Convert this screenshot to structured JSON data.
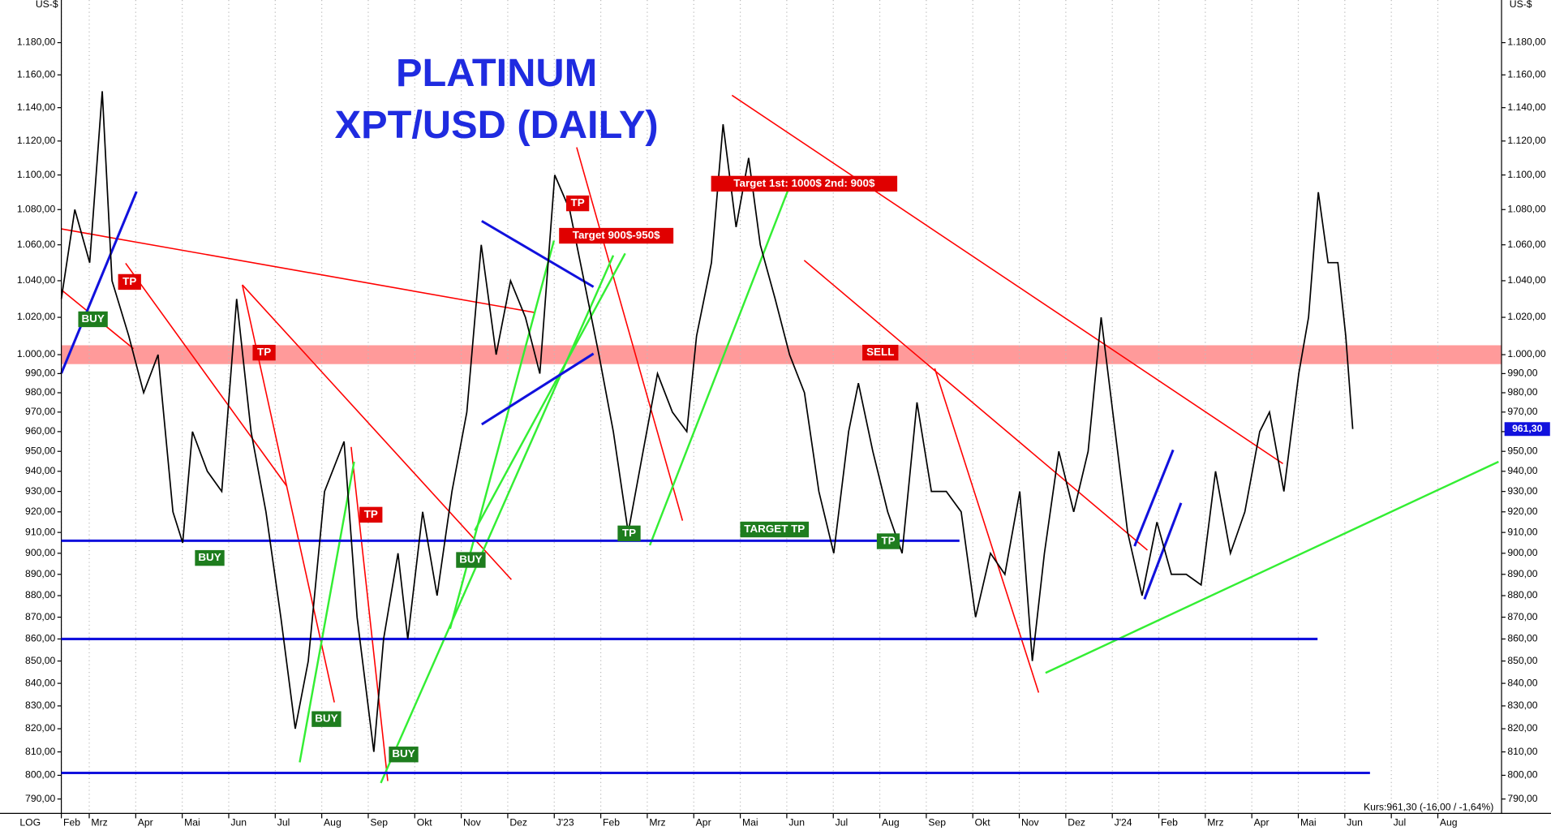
{
  "chart_data": {
    "type": "line",
    "title": [
      "PLATINUM",
      "XPT/USD (DAILY)"
    ],
    "y_label": "US-$",
    "scale_label": "LOG",
    "log_scale": true,
    "grid": true,
    "color": "#000000",
    "last_price_label": "961,30",
    "quote": "Kurs:961,30 (-16,00 / -1,64%)",
    "x": [
      1.4,
      1.69,
      2.01,
      2.28,
      2.49,
      2.85,
      3.17,
      3.48,
      3.8,
      4.01,
      4.22,
      4.54,
      4.85,
      5.17,
      5.48,
      5.8,
      6.12,
      6.43,
      6.71,
      7.06,
      7.48,
      7.76,
      8.12,
      8.33,
      8.64,
      8.85,
      9.17,
      9.48,
      9.8,
      10.12,
      10.43,
      10.75,
      11.06,
      11.38,
      11.69,
      12.01,
      12.33,
      12.64,
      12.96,
      13.27,
      13.59,
      13.91,
      14.22,
      14.54,
      14.85,
      15.06,
      15.38,
      15.63,
      15.91,
      16.18,
      16.43,
      16.75,
      17.06,
      17.38,
      17.69,
      18.01,
      18.33,
      18.54,
      18.85,
      19.17,
      19.48,
      19.8,
      20.11,
      20.43,
      20.75,
      21.06,
      21.38,
      21.69,
      22.01,
      22.28,
      22.54,
      22.85,
      23.17,
      23.48,
      23.76,
      24.01,
      24.33,
      24.64,
      24.96,
      25.27,
      25.59,
      25.91,
      26.22,
      26.54,
      26.85,
      27.17,
      27.38,
      27.69,
      28.01,
      28.22,
      28.43,
      28.64,
      28.85,
      29.02,
      29.17
    ],
    "values": [
      1030,
      1080,
      1050,
      1150,
      1040,
      1010,
      980,
      1000,
      920,
      905,
      960,
      940,
      930,
      1030,
      960,
      920,
      870,
      820,
      850,
      930,
      955,
      870,
      810,
      860,
      900,
      860,
      920,
      880,
      930,
      970,
      1060,
      1000,
      1040,
      1020,
      990,
      1100,
      1080,
      1040,
      1000,
      960,
      910,
      950,
      990,
      970,
      960,
      1010,
      1050,
      1130,
      1070,
      1110,
      1060,
      1030,
      1000,
      980,
      930,
      900,
      960,
      985,
      950,
      920,
      900,
      975,
      930,
      930,
      920,
      870,
      900,
      890,
      930,
      850,
      900,
      950,
      920,
      950,
      1020,
      970,
      910,
      880,
      915,
      890,
      890,
      885,
      940,
      900,
      920,
      960,
      970,
      930,
      990,
      1020,
      1090,
      1050,
      1050,
      1010,
      961.3
    ],
    "xlim": [
      1.4,
      32.37
    ],
    "xticks": [
      {
        "value": 1.4,
        "label": "Feb"
      },
      {
        "value": 2,
        "label": "Mrz"
      },
      {
        "value": 3,
        "label": "Apr"
      },
      {
        "value": 4,
        "label": "Mai"
      },
      {
        "value": 5,
        "label": "Jun"
      },
      {
        "value": 6,
        "label": "Jul"
      },
      {
        "value": 7,
        "label": "Aug"
      },
      {
        "value": 8,
        "label": "Sep"
      },
      {
        "value": 9,
        "label": "Okt"
      },
      {
        "value": 10,
        "label": "Nov"
      },
      {
        "value": 11,
        "label": "Dez"
      },
      {
        "value": 12,
        "label": "J'23"
      },
      {
        "value": 13,
        "label": "Feb"
      },
      {
        "value": 14,
        "label": "Mrz"
      },
      {
        "value": 15,
        "label": "Apr"
      },
      {
        "value": 16,
        "label": "Mai"
      },
      {
        "value": 17,
        "label": "Jun"
      },
      {
        "value": 18,
        "label": "Jul"
      },
      {
        "value": 19,
        "label": "Aug"
      },
      {
        "value": 20,
        "label": "Sep"
      },
      {
        "value": 21,
        "label": "Okt"
      },
      {
        "value": 22,
        "label": "Nov"
      },
      {
        "value": 23,
        "label": "Dez"
      },
      {
        "value": 24,
        "label": "J'24"
      },
      {
        "value": 25,
        "label": "Feb"
      },
      {
        "value": 26,
        "label": "Mrz"
      },
      {
        "value": 27,
        "label": "Apr"
      },
      {
        "value": 28,
        "label": "Mai"
      },
      {
        "value": 29,
        "label": "Jun"
      },
      {
        "value": 30,
        "label": "Jul"
      },
      {
        "value": 31,
        "label": "Aug"
      }
    ],
    "ylim": [
      784,
      1207
    ],
    "yticks": [
      {
        "value": 790,
        "label": "790,00"
      },
      {
        "value": 800,
        "label": "800,00"
      },
      {
        "value": 810,
        "label": "810,00"
      },
      {
        "value": 820,
        "label": "820,00"
      },
      {
        "value": 830,
        "label": "830,00"
      },
      {
        "value": 840,
        "label": "840,00"
      },
      {
        "value": 850,
        "label": "850,00"
      },
      {
        "value": 860,
        "label": "860,00"
      },
      {
        "value": 870,
        "label": "870,00"
      },
      {
        "value": 880,
        "label": "880,00"
      },
      {
        "value": 890,
        "label": "890,00"
      },
      {
        "value": 900,
        "label": "900,00"
      },
      {
        "value": 910,
        "label": "910,00"
      },
      {
        "value": 920,
        "label": "920,00"
      },
      {
        "value": 930,
        "label": "930,00"
      },
      {
        "value": 940,
        "label": "940,00"
      },
      {
        "value": 950,
        "label": "950,00"
      },
      {
        "value": 960,
        "label": "960,00"
      },
      {
        "value": 970,
        "label": "970,00"
      },
      {
        "value": 980,
        "label": "980,00"
      },
      {
        "value": 990,
        "label": "990,00"
      },
      {
        "value": 1000,
        "label": "1.000,00"
      },
      {
        "value": 1020,
        "label": "1.020,00"
      },
      {
        "value": 1040,
        "label": "1.040,00"
      },
      {
        "value": 1060,
        "label": "1.060,00"
      },
      {
        "value": 1080,
        "label": "1.080,00"
      },
      {
        "value": 1100,
        "label": "1.100,00"
      },
      {
        "value": 1120,
        "label": "1.120,00"
      },
      {
        "value": 1140,
        "label": "1.140,00"
      },
      {
        "value": 1160,
        "label": "1.160,00"
      },
      {
        "value": 1180,
        "label": "1.180,00"
      }
    ],
    "levels": [
      906,
      860,
      801
    ],
    "resistance_band": [
      995,
      1005
    ],
    "annotations": [
      "BUY",
      "TP",
      "TP",
      "BUY",
      "BUY",
      "TP",
      "BUY",
      "BUY",
      "TP",
      "Target 900$-950$",
      "TP",
      "Target 1st: 1000$ 2nd: 900$",
      "TARGET TP",
      "SELL",
      "TP"
    ]
  }
}
